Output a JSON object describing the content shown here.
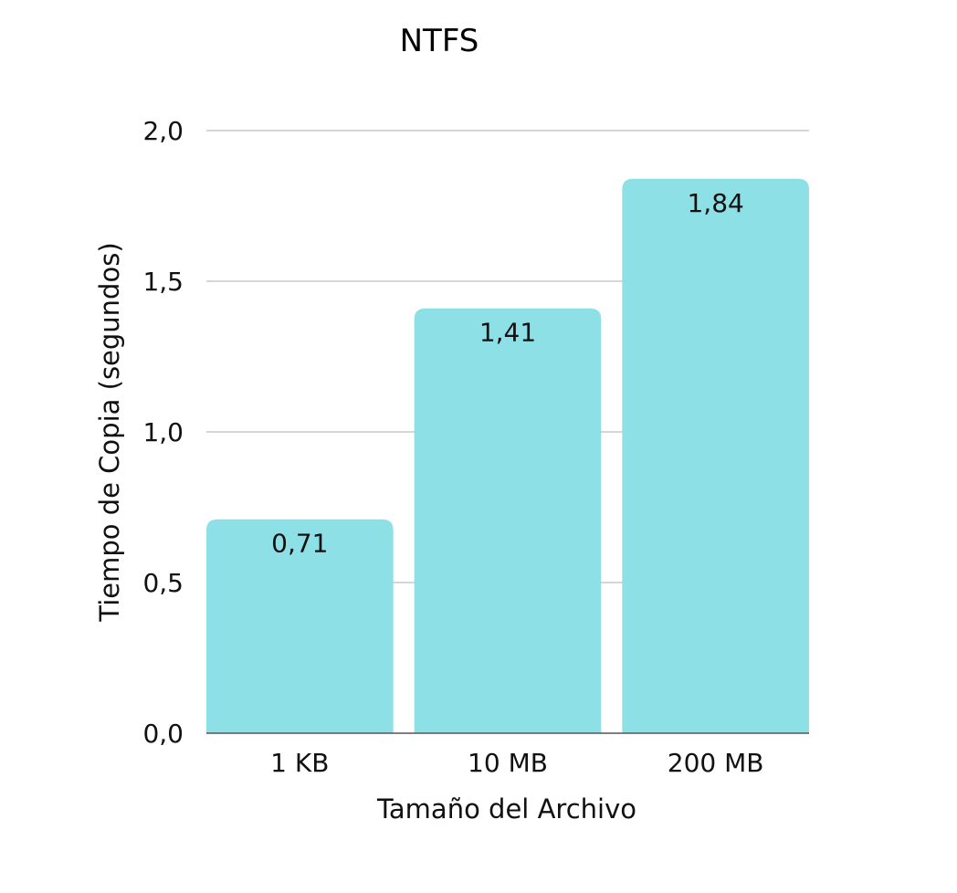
{
  "chart_data": {
    "type": "bar",
    "title": "NTFS",
    "xlabel": "Tamaño del Archivo",
    "ylabel": "Tiempo de Copia (segundos)",
    "categories": [
      "1 KB",
      "10 MB",
      "200 MB"
    ],
    "values": [
      0.71,
      1.41,
      1.84
    ],
    "value_labels": [
      "0,71",
      "1,41",
      "1,84"
    ],
    "ylim": [
      0,
      2.0
    ],
    "yticks": [
      0,
      0.5,
      1.0,
      1.5,
      2.0
    ],
    "ytick_labels": [
      "0,0",
      "0,5",
      "1,0",
      "1,5",
      "2,0"
    ],
    "grid": true,
    "legend": "none",
    "bar_color": "#8de1e6"
  }
}
